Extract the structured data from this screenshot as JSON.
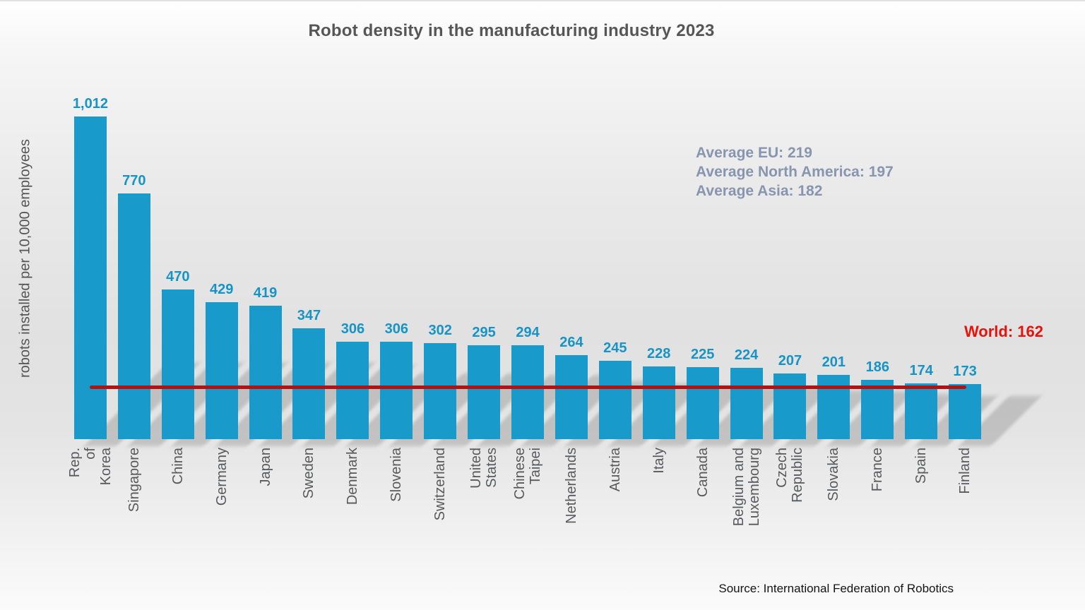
{
  "chart_data": {
    "type": "bar",
    "title": "Robot density in the manufacturing industry 2023",
    "ylabel": "robots installed per 10,000 employees",
    "xlabel": "",
    "categories": [
      "Rep. of Korea",
      "Singapore",
      "China",
      "Germany",
      "Japan",
      "Sweden",
      "Denmark",
      "Slovenia",
      "Switzerland",
      "United States",
      "Chinese Taipei",
      "Netherlands",
      "Austria",
      "Italy",
      "Canada",
      "Belgium and\nLuxembourg",
      "Czech Republic",
      "Slovakia",
      "France",
      "Spain",
      "Finland"
    ],
    "values": [
      1012,
      770,
      470,
      429,
      419,
      347,
      306,
      306,
      302,
      295,
      294,
      264,
      245,
      228,
      225,
      224,
      207,
      201,
      186,
      174,
      173
    ],
    "value_labels": [
      "1,012",
      "770",
      "470",
      "429",
      "419",
      "347",
      "306",
      "306",
      "302",
      "295",
      "294",
      "264",
      "245",
      "228",
      "225",
      "224",
      "207",
      "201",
      "186",
      "174",
      "173"
    ],
    "ylim": [
      0,
      1100
    ],
    "grid": false,
    "legend": false,
    "reference_line": {
      "label": "World: 162",
      "value": 162,
      "line_color": "#b11212",
      "label_color": "#e8120c"
    },
    "annotations": [
      "Average EU: 219",
      "Average North America: 197",
      "Average Asia: 182"
    ],
    "colors": {
      "bar": "#189bcb",
      "value_label": "#1794c5",
      "annotation": "#8795af",
      "title": "#565656",
      "axis_label": "#545454"
    },
    "source": "Source: International Federation of Robotics"
  }
}
